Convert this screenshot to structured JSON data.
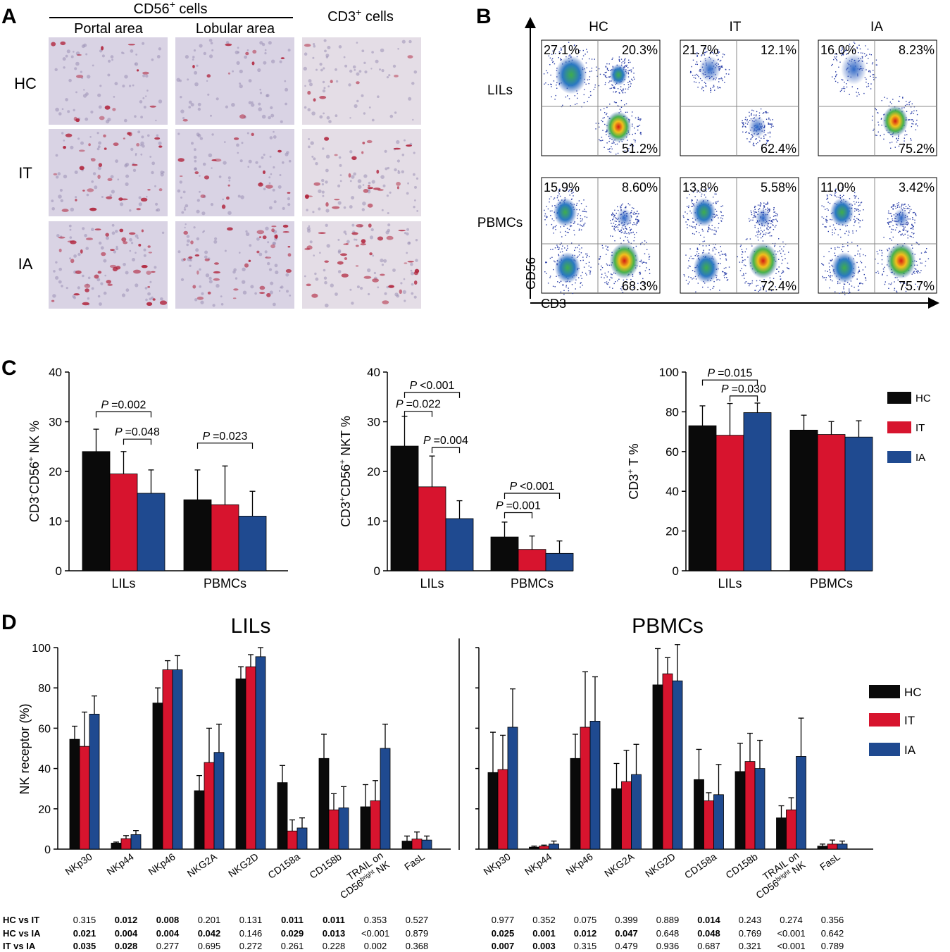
{
  "colors": {
    "HC": "#0a0a0a",
    "IT": "#d7142e",
    "IA": "#1f4a90",
    "micro_bg": "#dcd8e8",
    "micro_stain": "#b0243c"
  },
  "panel_labels": [
    "A",
    "B",
    "C",
    "D"
  ],
  "panelA": {
    "header_cd56": "CD56",
    "header_cd56_sup": "+",
    "header_cd56_suffix": " cells",
    "header_cd3": "CD3",
    "header_cd3_sup": "+",
    "header_cd3_suffix": " cells",
    "col_labels": [
      "Portal area",
      "Lobular area"
    ],
    "row_labels": [
      "HC",
      "IT",
      "IA"
    ]
  },
  "panelB": {
    "col_labels": [
      "HC",
      "IT",
      "IA"
    ],
    "row_labels": [
      "LILs",
      "PBMCs"
    ],
    "y_axis": "CD56",
    "x_axis": "CD3",
    "quadrants": [
      [
        [
          "27.1%",
          "20.3%",
          "51.2%"
        ],
        [
          "21.7%",
          "12.1%",
          "62.4%"
        ],
        [
          "16.0%",
          "8.23%",
          "75.2%"
        ]
      ],
      [
        [
          "15.9%",
          "8.60%",
          "68.3%"
        ],
        [
          "13.8%",
          "5.58%",
          "72.4%"
        ],
        [
          "11.0%",
          "3.42%",
          "75.7%"
        ]
      ]
    ]
  },
  "chart_data": [
    {
      "id": "C-NK",
      "type": "bar",
      "ylabel_main": "CD3",
      "ylabel_sup1": "-",
      "ylabel_mid": "CD56",
      "ylabel_sup2": "+",
      "ylabel_tail": " NK %",
      "categories": [
        "LILs",
        "PBMCs"
      ],
      "ylim": [
        0,
        40
      ],
      "yticks": [
        "0",
        "10",
        "20",
        "30",
        "40"
      ],
      "series": [
        {
          "name": "HC",
          "values": [
            24.0,
            14.3
          ],
          "errors": [
            4.5,
            6.0
          ]
        },
        {
          "name": "IT",
          "values": [
            19.5,
            13.3
          ],
          "errors": [
            4.5,
            7.8
          ]
        },
        {
          "name": "IA",
          "values": [
            15.6,
            11.0
          ],
          "errors": [
            4.7,
            5.0
          ]
        }
      ],
      "annotations": [
        {
          "text": "=0.002",
          "from": [
            0,
            0
          ],
          "to": [
            0,
            2
          ],
          "level": 32
        },
        {
          "text": "=0.048",
          "from": [
            0,
            1
          ],
          "to": [
            0,
            2
          ],
          "level": 26.5
        },
        {
          "text": "=0.023",
          "from": [
            1,
            0
          ],
          "to": [
            1,
            2
          ],
          "level": 25.7
        }
      ]
    },
    {
      "id": "C-NKT",
      "type": "bar",
      "ylabel_main": "CD3",
      "ylabel_sup1": "+",
      "ylabel_mid": "CD56",
      "ylabel_sup2": "+",
      "ylabel_tail": " NKT %",
      "categories": [
        "LILs",
        "PBMCs"
      ],
      "ylim": [
        0,
        40
      ],
      "yticks": [
        "0",
        "10",
        "20",
        "30",
        "40"
      ],
      "series": [
        {
          "name": "HC",
          "values": [
            25.1,
            6.8
          ],
          "errors": [
            6.0,
            3.0
          ]
        },
        {
          "name": "IT",
          "values": [
            16.9,
            4.3
          ],
          "errors": [
            6.2,
            2.7
          ]
        },
        {
          "name": "IA",
          "values": [
            10.5,
            3.5
          ],
          "errors": [
            3.6,
            2.5
          ]
        }
      ],
      "annotations": [
        {
          "text": "<0.001",
          "from": [
            0,
            0
          ],
          "to": [
            0,
            2
          ],
          "level": 35.9
        },
        {
          "text": "=0.022",
          "from": [
            0,
            0
          ],
          "to": [
            0,
            1
          ],
          "level": 32.1
        },
        {
          "text": "=0.004",
          "from": [
            0,
            1
          ],
          "to": [
            0,
            2
          ],
          "level": 24.8
        },
        {
          "text": "<0.001",
          "from": [
            1,
            0
          ],
          "to": [
            1,
            2
          ],
          "level": 15.6
        },
        {
          "text": "=0.001",
          "from": [
            1,
            0
          ],
          "to": [
            1,
            1
          ],
          "level": 11.7
        }
      ]
    },
    {
      "id": "C-T",
      "type": "bar",
      "ylabel_main": "CD3",
      "ylabel_sup1": "+",
      "ylabel_mid": "",
      "ylabel_sup2": "",
      "ylabel_tail": " T %",
      "categories": [
        "LILs",
        "PBMCs"
      ],
      "ylim": [
        0,
        100
      ],
      "yticks": [
        "0",
        "20",
        "40",
        "60",
        "80",
        "100"
      ],
      "series": [
        {
          "name": "HC",
          "values": [
            73.0,
            70.8
          ],
          "errors": [
            10.0,
            7.5
          ]
        },
        {
          "name": "IT",
          "values": [
            68.2,
            68.6
          ],
          "errors": [
            16.0,
            6.5
          ]
        },
        {
          "name": "IA",
          "values": [
            79.6,
            67.3
          ],
          "errors": [
            4.8,
            8.2
          ]
        }
      ],
      "annotations": [
        {
          "text": "=0.015",
          "from": [
            0,
            0
          ],
          "to": [
            0,
            2
          ],
          "level": 96.0
        },
        {
          "text": "=0.030",
          "from": [
            0,
            1
          ],
          "to": [
            0,
            2
          ],
          "level": 88.0
        }
      ]
    },
    {
      "id": "D-LILs",
      "type": "bar",
      "title": "LILs",
      "ylabel": "NK receptor (%)",
      "categories": [
        "NKp30",
        "NKp44",
        "NKp46",
        "NKG2A",
        "NKG2D",
        "CD158a",
        "CD158b",
        "TRAIL on CD56bright NK",
        "FasL"
      ],
      "ylim": [
        0,
        100
      ],
      "yticks": [
        "0",
        "20",
        "40",
        "60",
        "80",
        "100"
      ],
      "series": [
        {
          "name": "HC",
          "values": [
            54.5,
            3.0,
            72.5,
            29.0,
            84.5,
            33.0,
            45.0,
            21.0,
            4.0
          ],
          "errors": [
            6.5,
            0.5,
            7.5,
            7.5,
            6.0,
            8.5,
            12.0,
            11.0,
            2.5
          ]
        },
        {
          "name": "IT",
          "values": [
            51.0,
            5.2,
            89.0,
            43.0,
            90.5,
            9.0,
            19.5,
            24.0,
            5.0
          ],
          "errors": [
            17.0,
            1.5,
            4.5,
            17.0,
            6.0,
            5.5,
            8.0,
            10.0,
            3.5
          ]
        },
        {
          "name": "IA",
          "values": [
            67.0,
            7.2,
            89.0,
            48.0,
            95.5,
            10.5,
            20.5,
            50.0,
            4.5
          ],
          "errors": [
            9.0,
            2.0,
            7.0,
            14.0,
            4.5,
            5.0,
            10.5,
            12.0,
            2.0
          ]
        }
      ],
      "pvalues": {
        "row_labels": [
          "HC vs IT",
          "HC vs IA",
          "IT  vs IA"
        ],
        "rows": [
          [
            {
              "v": "0.315",
              "b": false
            },
            {
              "v": "0.012",
              "b": true
            },
            {
              "v": "0.008",
              "b": true
            },
            {
              "v": "0.201",
              "b": false
            },
            {
              "v": "0.131",
              "b": false
            },
            {
              "v": "0.011",
              "b": true
            },
            {
              "v": "0.011",
              "b": true
            },
            {
              "v": "0.353",
              "b": false
            },
            {
              "v": "0.527",
              "b": false
            }
          ],
          [
            {
              "v": "0.021",
              "b": true
            },
            {
              "v": "0.004",
              "b": true
            },
            {
              "v": "0.004",
              "b": true
            },
            {
              "v": "0.042",
              "b": true
            },
            {
              "v": "0.146",
              "b": false
            },
            {
              "v": "0.029",
              "b": true
            },
            {
              "v": "0.013",
              "b": true
            },
            {
              "v": "<0.001",
              "b": false
            },
            {
              "v": "0.879",
              "b": false
            }
          ],
          [
            {
              "v": "0.035",
              "b": true
            },
            {
              "v": "0.028",
              "b": true
            },
            {
              "v": "0.277",
              "b": false
            },
            {
              "v": "0.695",
              "b": false
            },
            {
              "v": "0.272",
              "b": false
            },
            {
              "v": "0.261",
              "b": false
            },
            {
              "v": "0.228",
              "b": false
            },
            {
              "v": "0.002",
              "b": false
            },
            {
              "v": "0.368",
              "b": false
            }
          ]
        ]
      }
    },
    {
      "id": "D-PBMCs",
      "type": "bar",
      "title": "PBMCs",
      "categories": [
        "NKp30",
        "NKp44",
        "NKp46",
        "NKG2A",
        "NKG2D",
        "CD158a",
        "CD158b",
        "TRAIL on CD56bright NK",
        "FasL"
      ],
      "ylim": [
        0,
        100
      ],
      "series": [
        {
          "name": "HC",
          "values": [
            38.0,
            1.0,
            45.0,
            30.0,
            81.5,
            34.5,
            38.5,
            15.5,
            1.5
          ],
          "errors": [
            20.0,
            0.5,
            12.0,
            12.5,
            18.0,
            15.0,
            14.0,
            6.0,
            1.0
          ]
        },
        {
          "name": "IT",
          "values": [
            39.5,
            1.5,
            60.5,
            33.5,
            87.0,
            24.0,
            43.5,
            19.5,
            2.5
          ],
          "errors": [
            17.0,
            0.5,
            27.5,
            15.5,
            8.0,
            4.0,
            14.0,
            6.0,
            2.0
          ]
        },
        {
          "name": "IA",
          "values": [
            60.5,
            2.5,
            63.5,
            37.0,
            83.5,
            27.0,
            40.0,
            46.0,
            2.5
          ],
          "errors": [
            19.0,
            1.5,
            22.0,
            15.0,
            18.0,
            15.0,
            14.0,
            19.0,
            1.5
          ]
        }
      ],
      "pvalues": {
        "rows": [
          [
            {
              "v": "0.977",
              "b": false
            },
            {
              "v": "0.352",
              "b": false
            },
            {
              "v": "0.075",
              "b": false
            },
            {
              "v": "0.399",
              "b": false
            },
            {
              "v": "0.889",
              "b": false
            },
            {
              "v": "0.014",
              "b": true
            },
            {
              "v": "0.243",
              "b": false
            },
            {
              "v": "0.274",
              "b": false
            },
            {
              "v": "0.356",
              "b": false
            }
          ],
          [
            {
              "v": "0.025",
              "b": true
            },
            {
              "v": "0.001",
              "b": true
            },
            {
              "v": "0.012",
              "b": true
            },
            {
              "v": "0.047",
              "b": true
            },
            {
              "v": "0.648",
              "b": false
            },
            {
              "v": "0.048",
              "b": true
            },
            {
              "v": "0.769",
              "b": false
            },
            {
              "v": "<0.001",
              "b": false
            },
            {
              "v": "0.642",
              "b": false
            }
          ],
          [
            {
              "v": "0.007",
              "b": true
            },
            {
              "v": "0.003",
              "b": true
            },
            {
              "v": "0.315",
              "b": false
            },
            {
              "v": "0.479",
              "b": false
            },
            {
              "v": "0.936",
              "b": false
            },
            {
              "v": "0.687",
              "b": false
            },
            {
              "v": "0.321",
              "b": false
            },
            {
              "v": "<0.001",
              "b": false
            },
            {
              "v": "0.789",
              "b": false
            }
          ]
        ]
      }
    }
  ],
  "legend": [
    "HC",
    "IT",
    "IA"
  ],
  "p_symbol": "P"
}
